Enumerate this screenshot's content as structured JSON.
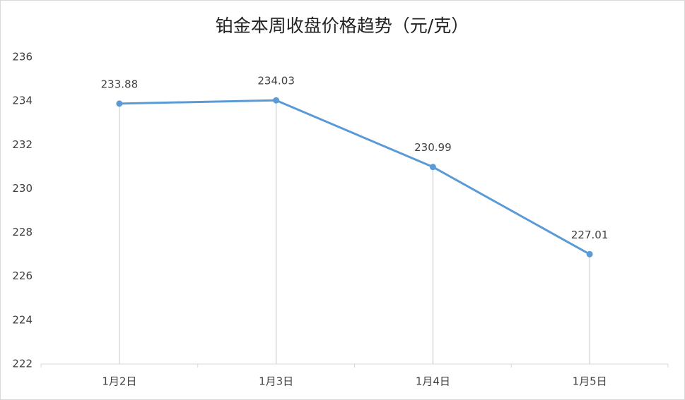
{
  "chart_data": {
    "type": "line",
    "title": "铂金本周收盘价格趋势（元/克）",
    "categories": [
      "1月2日",
      "1月3日",
      "1月4日",
      "1月5日"
    ],
    "values": [
      233.88,
      234.03,
      230.99,
      227.01
    ],
    "color": "#5b9bd5",
    "ylim": [
      222,
      236
    ],
    "yticks": [
      222,
      224,
      226,
      228,
      230,
      232,
      234,
      236
    ],
    "drop_lines": true,
    "data_labels": true
  }
}
